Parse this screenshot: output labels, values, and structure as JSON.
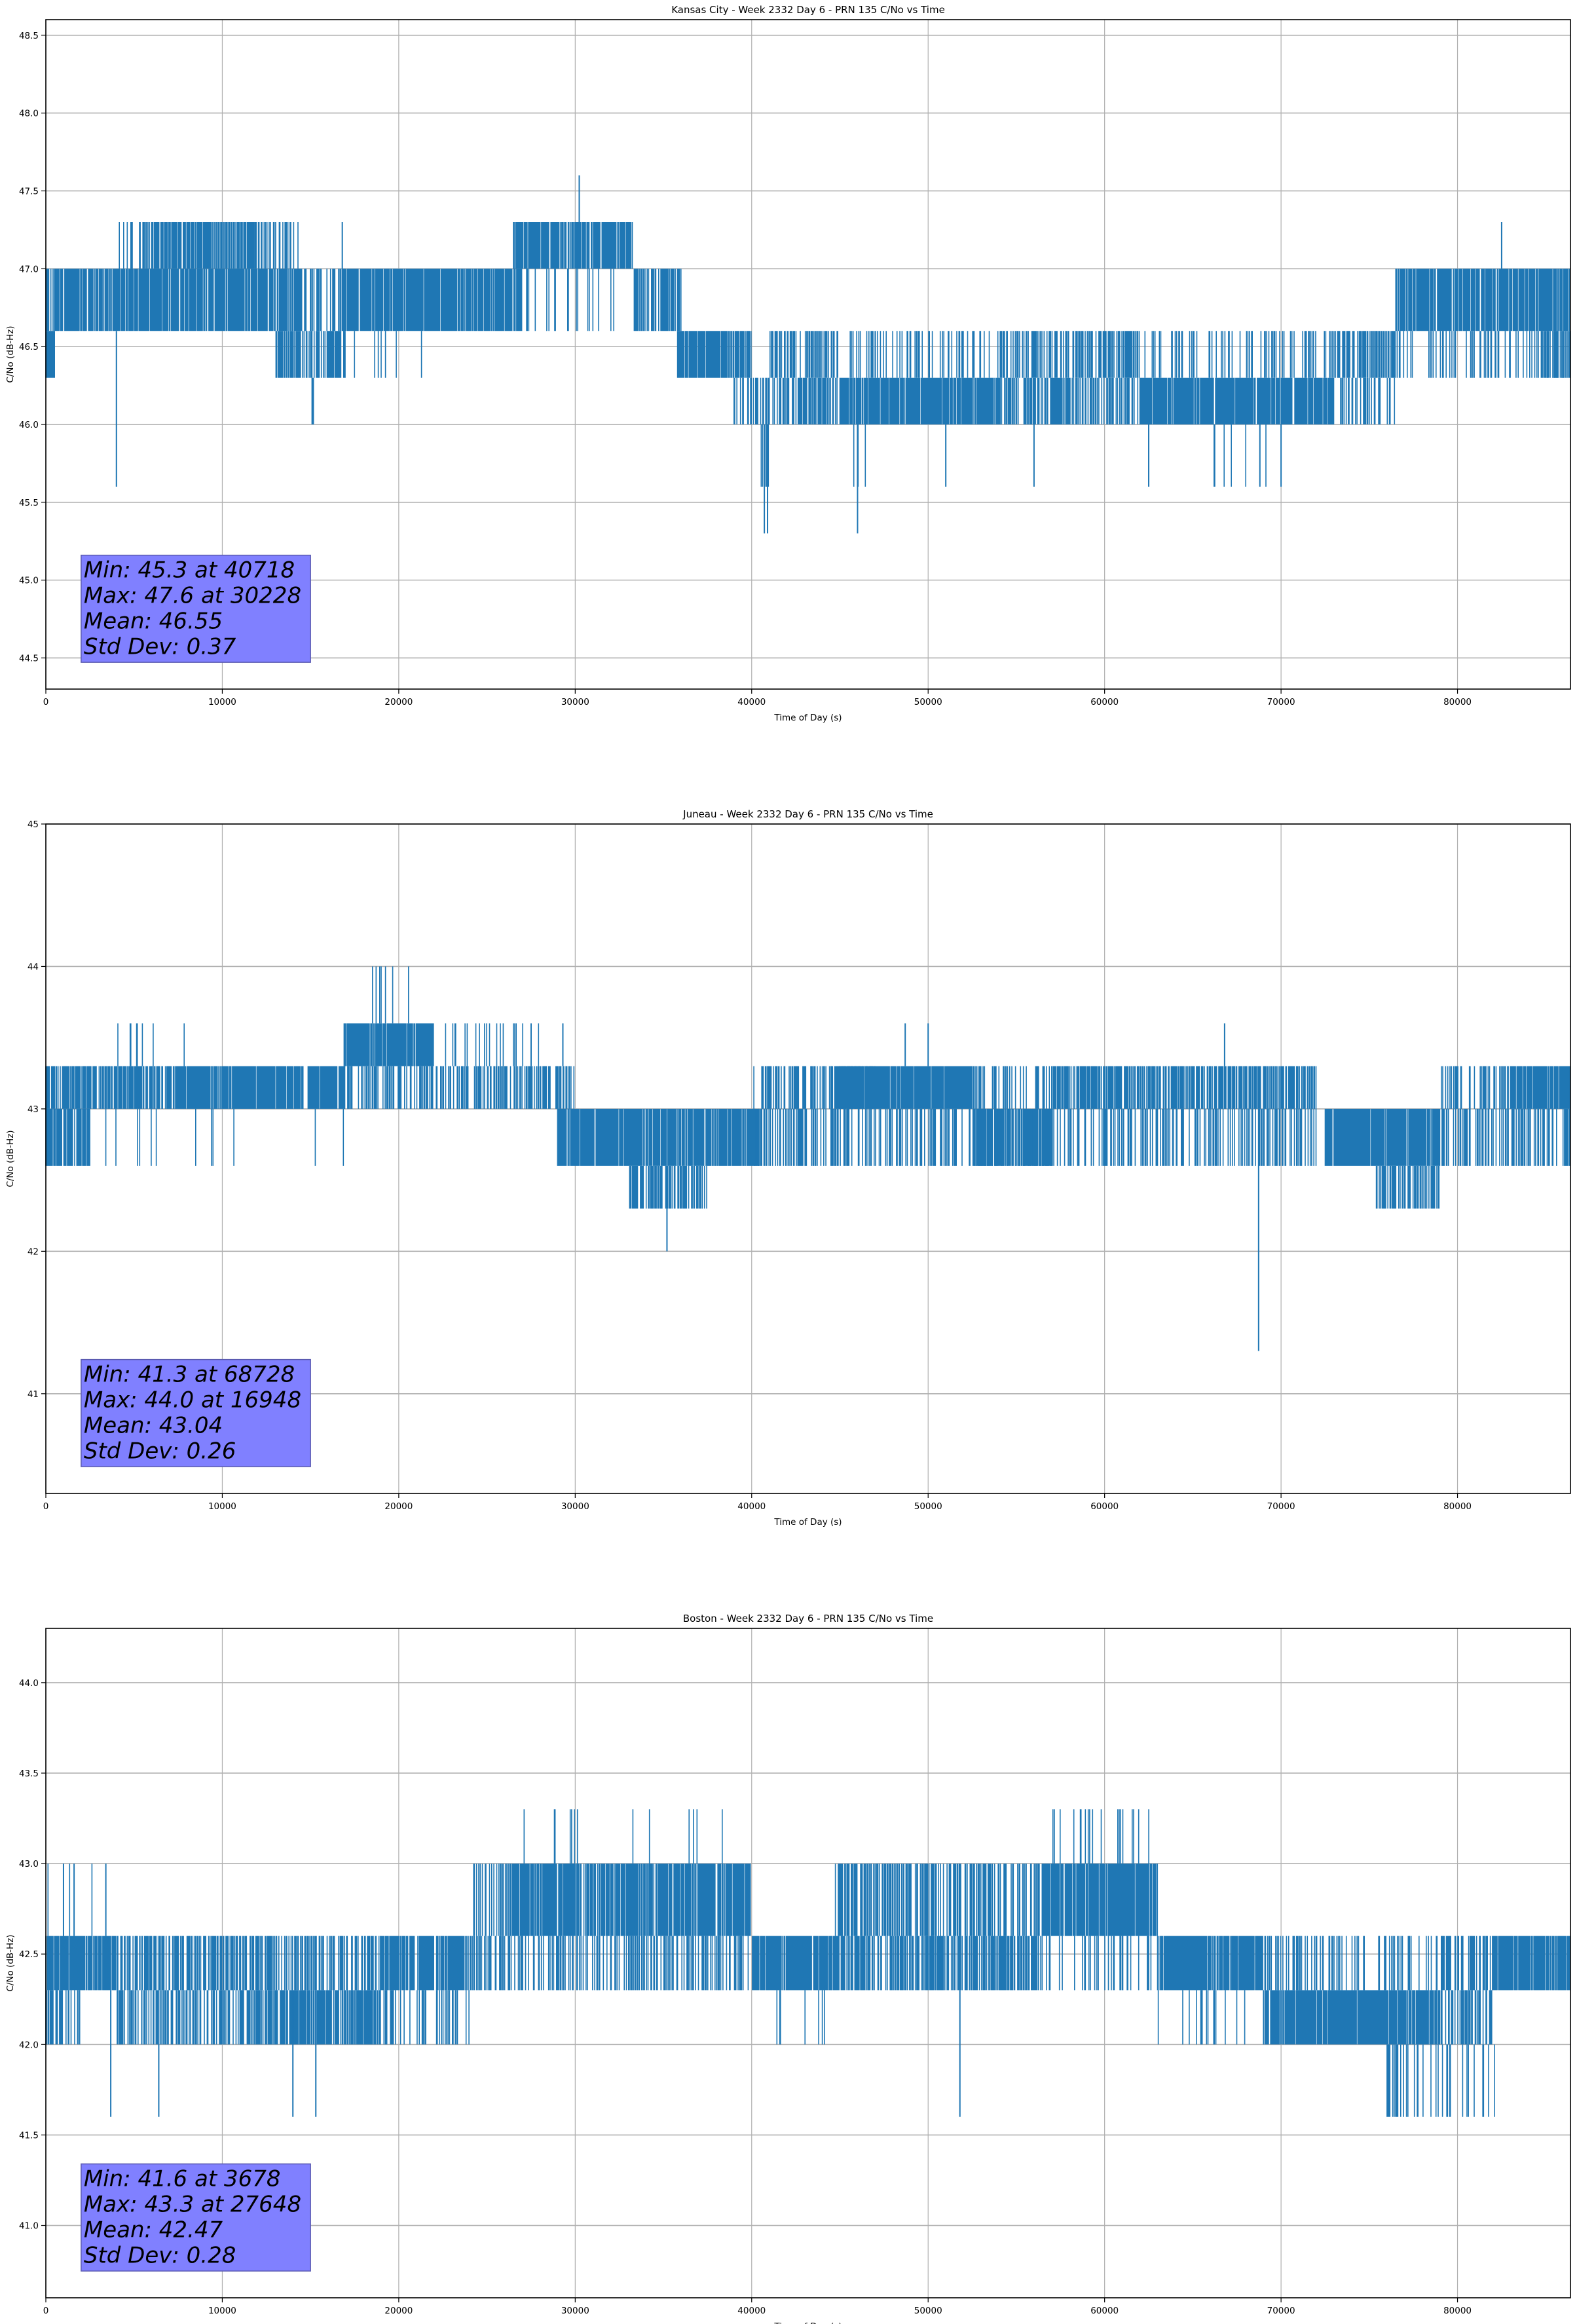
{
  "chart_data": [
    {
      "type": "line",
      "title": "Kansas City - Week 2332 Day 6 - PRN 135 C/No vs Time",
      "xlabel": "Time of Day (s)",
      "ylabel": "C/No (dB-Hz)",
      "xlim": [
        0,
        86400
      ],
      "ylim": [
        44.3,
        48.6
      ],
      "xticks": [
        0,
        10000,
        20000,
        30000,
        40000,
        50000,
        60000,
        70000,
        80000
      ],
      "xtick_labels": [
        "0",
        "10000",
        "20000",
        "30000",
        "40000",
        "50000",
        "60000",
        "70000",
        "80000"
      ],
      "yticks": [
        44.5,
        45.0,
        45.5,
        46.0,
        46.5,
        47.0,
        47.5,
        48.0,
        48.5
      ],
      "ytick_labels": [
        "44.5",
        "45.0",
        "45.5",
        "46.0",
        "46.5",
        "47.0",
        "47.5",
        "48.0",
        "48.5"
      ],
      "grid": true,
      "color": "#1f77b4",
      "stats_box_color": "#8080ff",
      "stats": [
        "Min: 45.3 at 40718",
        "Max: 47.6 at 30228",
        "Mean: 46.55",
        "Std Dev: 0.37"
      ],
      "bands": [
        [
          0,
          500,
          46.3,
          46.6,
          1
        ],
        [
          0,
          600,
          46.6,
          47.0,
          0.6
        ],
        [
          500,
          14500,
          46.6,
          47.0,
          0.85
        ],
        [
          4000,
          5500,
          47.0,
          47.3,
          0.3
        ],
        [
          5500,
          11800,
          47.0,
          47.3,
          0.75
        ],
        [
          11800,
          14300,
          47.0,
          47.3,
          0.3
        ],
        [
          13000,
          17000,
          46.3,
          46.6,
          0.6
        ],
        [
          14500,
          17000,
          46.6,
          47.0,
          0.3
        ],
        [
          15000,
          15800,
          46.0,
          46.3,
          0.3
        ],
        [
          16800,
          27000,
          46.6,
          47.0,
          0.9
        ],
        [
          17000,
          23000,
          46.3,
          46.6,
          0.05
        ],
        [
          26500,
          33300,
          47.0,
          47.3,
          0.9
        ],
        [
          27000,
          33300,
          46.6,
          47.0,
          0.1
        ],
        [
          33300,
          36000,
          46.6,
          47.0,
          0.75
        ],
        [
          35800,
          40000,
          46.3,
          46.6,
          0.85
        ],
        [
          39000,
          41000,
          46.0,
          46.3,
          0.5
        ],
        [
          41000,
          45000,
          46.3,
          46.6,
          0.5
        ],
        [
          41000,
          45000,
          46.0,
          46.3,
          0.6
        ],
        [
          40500,
          41500,
          45.6,
          46.0,
          0.3
        ],
        [
          45000,
          54000,
          46.0,
          46.3,
          0.9
        ],
        [
          45500,
          54000,
          46.3,
          46.6,
          0.25
        ],
        [
          45500,
          46500,
          45.6,
          46.0,
          0.3
        ],
        [
          54000,
          62000,
          46.3,
          46.6,
          0.55
        ],
        [
          54000,
          62000,
          46.0,
          46.3,
          0.55
        ],
        [
          62000,
          73000,
          46.0,
          46.3,
          0.9
        ],
        [
          62000,
          73000,
          46.3,
          46.6,
          0.25
        ],
        [
          66000,
          69500,
          45.6,
          46.0,
          0.08
        ],
        [
          73000,
          76500,
          46.3,
          46.6,
          0.6
        ],
        [
          73000,
          76500,
          46.0,
          46.3,
          0.3
        ],
        [
          76500,
          86400,
          46.6,
          47.0,
          0.85
        ],
        [
          76500,
          86400,
          46.3,
          46.6,
          0.25
        ],
        [
          84800,
          86400,
          46.3,
          46.6,
          0.6
        ]
      ],
      "spikes": [
        [
          4000,
          45.6,
          46.6
        ],
        [
          30228,
          47.3,
          47.6
        ],
        [
          40718,
          45.3,
          46.0
        ],
        [
          40900,
          45.3,
          46.0
        ],
        [
          46000,
          45.3,
          46.0
        ],
        [
          51000,
          45.6,
          46.0
        ],
        [
          56000,
          45.6,
          46.0
        ],
        [
          62500,
          45.6,
          46.0
        ],
        [
          68800,
          45.6,
          46.0
        ],
        [
          70000,
          45.6,
          46.0
        ],
        [
          82500,
          47.0,
          47.3
        ],
        [
          16800,
          47.0,
          47.3
        ]
      ]
    },
    {
      "type": "line",
      "title": "Juneau - Week 2332 Day 6 - PRN 135 C/No vs Time",
      "xlabel": "Time of Day (s)",
      "ylabel": "C/No (dB-Hz)",
      "xlim": [
        0,
        86400
      ],
      "ylim": [
        40.3,
        45.0
      ],
      "xticks": [
        0,
        10000,
        20000,
        30000,
        40000,
        50000,
        60000,
        70000,
        80000
      ],
      "xtick_labels": [
        "0",
        "10000",
        "20000",
        "30000",
        "40000",
        "50000",
        "60000",
        "70000",
        "80000"
      ],
      "yticks": [
        41,
        42,
        43,
        44,
        45
      ],
      "ytick_labels": [
        "41",
        "42",
        "43",
        "44",
        "45"
      ],
      "grid": true,
      "color": "#1f77b4",
      "stats_box_color": "#8080ff",
      "stats": [
        "Min: 41.3 at 68728",
        "Max: 44.0 at 16948",
        "Mean: 43.04",
        "Std Dev: 0.26"
      ],
      "bands": [
        [
          0,
          2500,
          42.6,
          43.0,
          0.85
        ],
        [
          0,
          8000,
          43.0,
          43.3,
          0.75
        ],
        [
          2500,
          8000,
          42.6,
          43.0,
          0.05
        ],
        [
          4000,
          8000,
          43.3,
          43.6,
          0.08
        ],
        [
          8000,
          16900,
          43.0,
          43.3,
          0.95
        ],
        [
          8000,
          16900,
          42.6,
          43.0,
          0.03
        ],
        [
          16900,
          22000,
          43.3,
          43.6,
          0.95
        ],
        [
          16900,
          30000,
          43.0,
          43.3,
          0.5
        ],
        [
          17000,
          22000,
          43.6,
          44.0,
          0.06
        ],
        [
          22000,
          28000,
          43.3,
          43.6,
          0.12
        ],
        [
          29000,
          40500,
          42.6,
          43.0,
          0.9
        ],
        [
          33000,
          37500,
          42.3,
          42.6,
          0.65
        ],
        [
          40000,
          47000,
          43.0,
          43.3,
          0.5
        ],
        [
          40000,
          57000,
          42.6,
          43.0,
          0.45
        ],
        [
          44500,
          52500,
          43.0,
          43.3,
          0.95
        ],
        [
          52500,
          57000,
          42.6,
          43.0,
          0.8
        ],
        [
          52500,
          57000,
          43.0,
          43.3,
          0.3
        ],
        [
          57000,
          72000,
          43.0,
          43.3,
          0.7
        ],
        [
          57000,
          72000,
          42.6,
          43.0,
          0.4
        ],
        [
          72500,
          79000,
          42.6,
          43.0,
          0.9
        ],
        [
          75400,
          79000,
          42.3,
          42.6,
          0.55
        ],
        [
          79000,
          86400,
          42.6,
          43.0,
          0.4
        ],
        [
          79000,
          83000,
          43.0,
          43.3,
          0.4
        ],
        [
          83000,
          86400,
          43.0,
          43.3,
          0.9
        ]
      ],
      "spikes": [
        [
          35200,
          42.0,
          42.6
        ],
        [
          68728,
          41.3,
          43.0
        ],
        [
          48700,
          43.3,
          43.6
        ],
        [
          50000,
          43.3,
          43.6
        ],
        [
          66800,
          43.3,
          43.6
        ],
        [
          29300,
          43.3,
          43.6
        ],
        [
          27500,
          43.3,
          43.6
        ]
      ]
    },
    {
      "type": "line",
      "title": "Boston - Week 2332 Day 6 - PRN 135 C/No vs Time",
      "xlabel": "Time of Day (s)",
      "ylabel": "C/No (dB-Hz)",
      "xlim": [
        0,
        86400
      ],
      "ylim": [
        40.6,
        44.3
      ],
      "xticks": [
        0,
        10000,
        20000,
        30000,
        40000,
        50000,
        60000,
        70000,
        80000
      ],
      "xtick_labels": [
        "0",
        "10000",
        "20000",
        "30000",
        "40000",
        "50000",
        "60000",
        "70000",
        "80000"
      ],
      "yticks": [
        41.0,
        41.5,
        42.0,
        42.5,
        43.0,
        43.5,
        44.0
      ],
      "ytick_labels": [
        "41.0",
        "41.5",
        "42.0",
        "42.5",
        "43.0",
        "43.5",
        "44.0"
      ],
      "grid": true,
      "color": "#1f77b4",
      "stats_box_color": "#8080ff",
      "stats": [
        "Min: 41.6 at 3678",
        "Max: 43.3 at 27648",
        "Mean: 42.47",
        "Std Dev: 0.28"
      ],
      "bands": [
        [
          0,
          4000,
          42.3,
          42.6,
          0.9
        ],
        [
          0,
          2000,
          42.0,
          42.3,
          0.5
        ],
        [
          0,
          3800,
          42.6,
          43.0,
          0.04
        ],
        [
          4000,
          11000,
          42.3,
          42.6,
          0.6
        ],
        [
          4000,
          11000,
          42.0,
          42.3,
          0.55
        ],
        [
          11000,
          19000,
          42.0,
          42.3,
          0.8
        ],
        [
          11000,
          19000,
          42.3,
          42.6,
          0.5
        ],
        [
          19000,
          24000,
          42.3,
          42.6,
          0.85
        ],
        [
          19000,
          24000,
          42.0,
          42.3,
          0.25
        ],
        [
          24000,
          26000,
          42.6,
          43.0,
          0.3
        ],
        [
          24000,
          40000,
          42.3,
          42.6,
          0.45
        ],
        [
          26000,
          40000,
          42.6,
          43.0,
          0.85
        ],
        [
          26000,
          38500,
          43.0,
          43.3,
          0.04
        ],
        [
          40000,
          44500,
          42.3,
          42.6,
          0.9
        ],
        [
          40000,
          44500,
          42.0,
          42.3,
          0.05
        ],
        [
          44500,
          56500,
          42.3,
          42.6,
          0.65
        ],
        [
          44500,
          56500,
          42.6,
          43.0,
          0.55
        ],
        [
          56500,
          63000,
          42.6,
          43.0,
          0.9
        ],
        [
          56500,
          63000,
          43.0,
          43.3,
          0.07
        ],
        [
          56500,
          63000,
          42.3,
          42.6,
          0.2
        ],
        [
          63000,
          69000,
          42.3,
          42.6,
          0.9
        ],
        [
          63000,
          69000,
          42.0,
          42.3,
          0.1
        ],
        [
          69000,
          79000,
          42.0,
          42.3,
          0.9
        ],
        [
          69000,
          79000,
          42.3,
          42.6,
          0.3
        ],
        [
          75800,
          82200,
          41.6,
          42.0,
          0.25
        ],
        [
          79000,
          82000,
          42.0,
          42.3,
          0.5
        ],
        [
          79000,
          82000,
          42.3,
          42.6,
          0.4
        ],
        [
          82000,
          86400,
          42.3,
          42.6,
          0.9
        ]
      ],
      "spikes": [
        [
          3678,
          41.6,
          42.3
        ],
        [
          6400,
          41.6,
          42.3
        ],
        [
          14000,
          41.6,
          42.3
        ],
        [
          15300,
          41.6,
          42.3
        ],
        [
          51800,
          41.6,
          42.3
        ],
        [
          1000,
          42.6,
          43.0
        ],
        [
          1600,
          42.6,
          43.0
        ],
        [
          3400,
          42.6,
          43.0
        ]
      ]
    }
  ]
}
